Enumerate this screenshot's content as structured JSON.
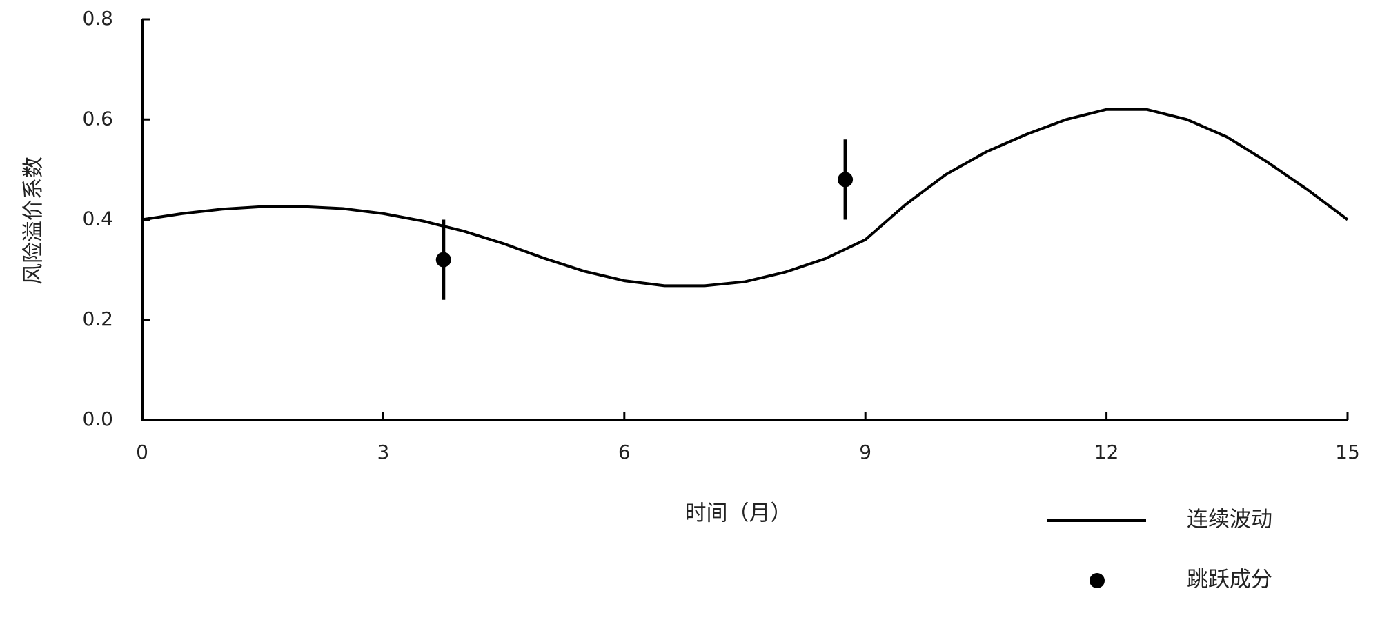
{
  "chart_data": {
    "type": "line",
    "xlabel": "时间（月）",
    "ylabel": "风险溢价系数",
    "xlim": [
      0,
      15
    ],
    "xticks": [
      0,
      3,
      6,
      9,
      12,
      15
    ],
    "ylim": [
      0,
      0.8
    ],
    "yticks": [
      {
        "value": 0,
        "label": "0.0"
      },
      0.2,
      0.4,
      0.6,
      0.8
    ],
    "series": [
      {
        "name": "连续波动",
        "type": "line",
        "color": "#000000",
        "x": [
          0,
          0.5,
          1,
          1.5,
          2,
          2.5,
          3,
          3.5,
          4,
          4.5,
          5,
          5.5,
          6,
          6.5,
          7,
          7.5,
          8,
          8.5,
          9,
          9.5,
          10,
          10.5,
          11,
          11.5,
          12,
          12.5,
          13,
          13.5,
          14,
          14.5,
          15
        ],
        "values": [
          0.4,
          0.412,
          0.421,
          0.426,
          0.426,
          0.422,
          0.412,
          0.397,
          0.377,
          0.352,
          0.323,
          0.297,
          0.278,
          0.268,
          0.268,
          0.276,
          0.295,
          0.322,
          0.36,
          0.43,
          0.49,
          0.535,
          0.57,
          0.6,
          0.62,
          0.62,
          0.6,
          0.565,
          0.515,
          0.46,
          0.4
        ]
      },
      {
        "name": "跳跃成分",
        "type": "scatter",
        "color": "#000000",
        "x": [
          3.75,
          8.75
        ],
        "values": [
          0.32,
          0.48
        ],
        "errors": [
          0.08,
          0.08
        ]
      }
    ]
  }
}
